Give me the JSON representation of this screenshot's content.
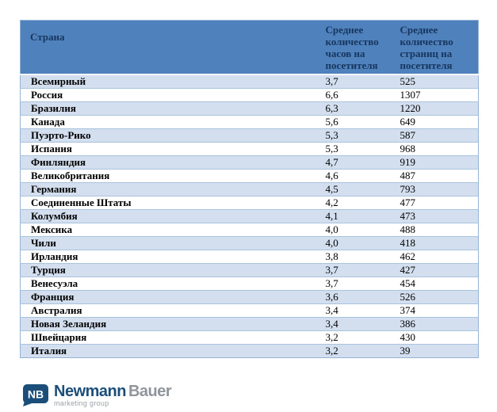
{
  "table": {
    "columns": [
      "Страна",
      "Среднее количество часов на посетителя",
      "Среднее количество страниц на посетителя"
    ],
    "rows": [
      [
        "Всемирный",
        "3,7",
        "525"
      ],
      [
        "Россия",
        "6,6",
        "1307"
      ],
      [
        "Бразилия",
        "6,3",
        "1220"
      ],
      [
        "Канада",
        "5,6",
        "649"
      ],
      [
        "Пуэрто-Рико",
        "5,3",
        "587"
      ],
      [
        "Испания",
        "5,3",
        "968"
      ],
      [
        "Финляндия",
        "4,7",
        "919"
      ],
      [
        "Великобритания",
        "4,6",
        "487"
      ],
      [
        "Германия",
        "4,5",
        "793"
      ],
      [
        "Соединенные Штаты",
        "4,2",
        "477"
      ],
      [
        "Колумбия",
        "4,1",
        "473"
      ],
      [
        "Мексика",
        "4,0",
        "488"
      ],
      [
        "Чили",
        "4,0",
        "418"
      ],
      [
        "Ирландия",
        "3,8",
        "462"
      ],
      [
        "Турция",
        "3,7",
        "427"
      ],
      [
        "Венесуэла",
        "3,7",
        "454"
      ],
      [
        "Франция",
        "3,6",
        "526"
      ],
      [
        "Австралия",
        "3,4",
        "374"
      ],
      [
        "Новая Зеландия",
        "3,4",
        "386"
      ],
      [
        "Швейцария",
        "3,2",
        "430"
      ],
      [
        "Италия",
        "3,2",
        "39"
      ]
    ]
  },
  "logo": {
    "badge": "NB",
    "name_primary": "Newmann",
    "name_secondary": "Bauer",
    "tagline": "marketing group"
  },
  "colors": {
    "header_bg": "#4f81bd",
    "header_text": "#17365d",
    "row_alt_bg": "#d3dfee",
    "row_bg": "#ffffff",
    "row_border": "#a9c2de",
    "table_border": "#95b3d7",
    "logo_navy": "#1b4e79",
    "logo_gray": "#8f959b"
  }
}
